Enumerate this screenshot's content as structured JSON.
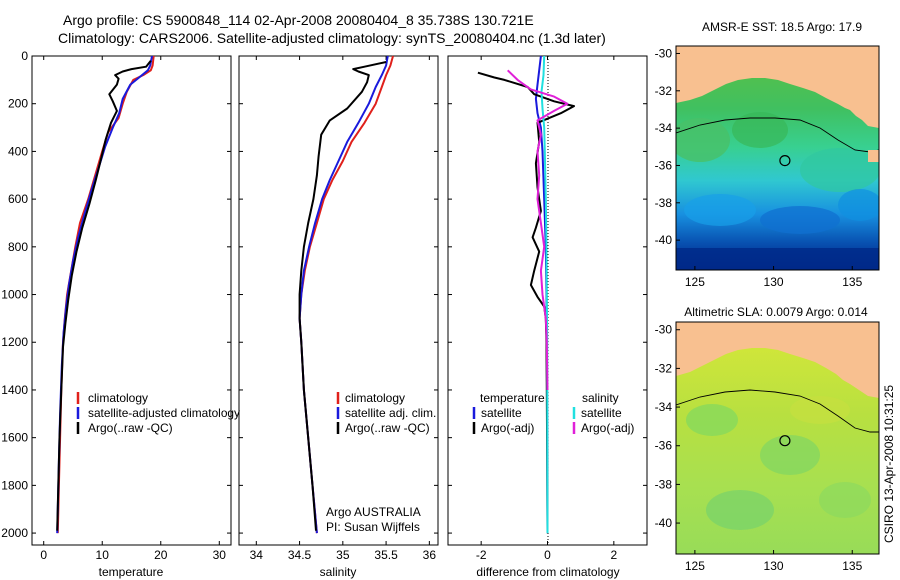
{
  "title": {
    "line1": "Argo profile: CS 5900848_114 02-Apr-2008 20080404_8 35.738S 130.721E",
    "line2": "Climatology: CARS2006. Satellite-adjusted climatology: synTS_20080404.nc (1.3d later)"
  },
  "colors": {
    "climatology": "#e0201b",
    "satellite": "#1a1adc",
    "argo": "#000000",
    "sat_salinity": "#20e0e0",
    "argo_salinity": "#e020d8",
    "land": "#f8c090"
  },
  "chart_data": [
    {
      "type": "line",
      "name": "temperature-profile",
      "xlabel": "temperature",
      "xlim": [
        -2,
        32
      ],
      "ylim": [
        0,
        2050
      ],
      "y_reversed": true,
      "xticks": [
        "0",
        "10",
        "20",
        "30"
      ],
      "xtick_values": [
        0,
        10,
        20,
        30
      ],
      "yticks": [
        "0",
        "200",
        "400",
        "600",
        "800",
        "1000",
        "1200",
        "1400",
        "1600",
        "1800",
        "2000"
      ],
      "ytick_values": [
        0,
        200,
        400,
        600,
        800,
        1000,
        1200,
        1400,
        1600,
        1800,
        2000
      ],
      "legend": [
        "climatology",
        "satellite-adjusted climatology",
        "Argo(..raw -QC)"
      ],
      "series": [
        {
          "name": "climatology",
          "color": "#e0201b",
          "points": [
            [
              18.8,
              0
            ],
            [
              18.6,
              40
            ],
            [
              18.3,
              60
            ],
            [
              17.0,
              80
            ],
            [
              15.3,
              100
            ],
            [
              14.2,
              150
            ],
            [
              13.5,
              200
            ],
            [
              12.8,
              260
            ],
            [
              11.0,
              320
            ],
            [
              10.0,
              400
            ],
            [
              8.8,
              500
            ],
            [
              7.6,
              600
            ],
            [
              6.2,
              700
            ],
            [
              5.4,
              800
            ],
            [
              4.7,
              900
            ],
            [
              4.0,
              1000
            ],
            [
              3.6,
              1100
            ],
            [
              3.3,
              1200
            ],
            [
              3.0,
              1400
            ],
            [
              2.8,
              1600
            ],
            [
              2.6,
              1800
            ],
            [
              2.4,
              2000
            ]
          ]
        },
        {
          "name": "satellite-adjusted climatology",
          "color": "#1a1adc",
          "points": [
            [
              18.5,
              0
            ],
            [
              18.2,
              40
            ],
            [
              17.8,
              60
            ],
            [
              16.3,
              90
            ],
            [
              14.8,
              120
            ],
            [
              13.5,
              180
            ],
            [
              12.9,
              240
            ],
            [
              11.8,
              300
            ],
            [
              10.5,
              380
            ],
            [
              9.5,
              460
            ],
            [
              8.2,
              560
            ],
            [
              7.0,
              660
            ],
            [
              5.9,
              760
            ],
            [
              5.0,
              860
            ],
            [
              4.3,
              960
            ],
            [
              3.8,
              1060
            ],
            [
              3.4,
              1160
            ],
            [
              3.1,
              1300
            ],
            [
              2.8,
              1500
            ],
            [
              2.6,
              1700
            ],
            [
              2.4,
              1900
            ],
            [
              2.3,
              2000
            ]
          ]
        },
        {
          "name": "Argo(..raw -QC)",
          "color": "#000000",
          "points": [
            [
              18.3,
              20
            ],
            [
              17.5,
              45
            ],
            [
              15.0,
              55
            ],
            [
              13.5,
              65
            ],
            [
              12.2,
              80
            ],
            [
              12.8,
              95
            ],
            [
              12.5,
              120
            ],
            [
              11.2,
              160
            ],
            [
              11.8,
              190
            ],
            [
              12.5,
              230
            ],
            [
              11.5,
              280
            ],
            [
              10.6,
              350
            ],
            [
              9.8,
              430
            ],
            [
              8.9,
              520
            ],
            [
              7.8,
              620
            ],
            [
              6.6,
              720
            ],
            [
              5.6,
              820
            ],
            [
              4.8,
              920
            ],
            [
              4.2,
              1020
            ],
            [
              3.7,
              1120
            ],
            [
              3.3,
              1220
            ],
            [
              3.0,
              1400
            ],
            [
              2.7,
              1600
            ],
            [
              2.5,
              1800
            ],
            [
              2.3,
              1990
            ]
          ]
        }
      ]
    },
    {
      "type": "line",
      "name": "salinity-profile",
      "xlabel": "salinity",
      "xlim": [
        33.8,
        36.1
      ],
      "ylim": [
        0,
        2050
      ],
      "y_reversed": true,
      "xticks": [
        "34",
        "34.5",
        "35",
        "35.5",
        "36"
      ],
      "xtick_values": [
        34,
        34.5,
        35,
        35.5,
        36
      ],
      "legend": [
        "climatology",
        "satellite adj. clim.",
        "Argo(..raw -QC)"
      ],
      "notes": [
        "Argo AUSTRALIA",
        "PI: Susan Wijffels"
      ],
      "series": [
        {
          "name": "climatology",
          "color": "#e0201b",
          "points": [
            [
              35.58,
              0
            ],
            [
              35.55,
              40
            ],
            [
              35.5,
              80
            ],
            [
              35.45,
              130
            ],
            [
              35.38,
              200
            ],
            [
              35.25,
              280
            ],
            [
              35.1,
              360
            ],
            [
              35.0,
              440
            ],
            [
              34.88,
              520
            ],
            [
              34.78,
              600
            ],
            [
              34.7,
              700
            ],
            [
              34.62,
              800
            ],
            [
              34.56,
              900
            ],
            [
              34.52,
              1000
            ],
            [
              34.5,
              1100
            ],
            [
              34.52,
              1200
            ],
            [
              34.55,
              1400
            ],
            [
              34.6,
              1600
            ],
            [
              34.65,
              1800
            ],
            [
              34.7,
              2000
            ]
          ]
        },
        {
          "name": "satellite adj. clim.",
          "color": "#1a1adc",
          "points": [
            [
              35.52,
              0
            ],
            [
              35.5,
              40
            ],
            [
              35.45,
              80
            ],
            [
              35.38,
              130
            ],
            [
              35.3,
              200
            ],
            [
              35.18,
              280
            ],
            [
              35.05,
              360
            ],
            [
              34.95,
              440
            ],
            [
              34.85,
              520
            ],
            [
              34.76,
              600
            ],
            [
              34.68,
              700
            ],
            [
              34.61,
              800
            ],
            [
              34.55,
              900
            ],
            [
              34.52,
              1000
            ],
            [
              34.5,
              1100
            ],
            [
              34.52,
              1200
            ],
            [
              34.55,
              1400
            ],
            [
              34.6,
              1600
            ],
            [
              34.65,
              1800
            ],
            [
              34.7,
              2000
            ]
          ]
        },
        {
          "name": "Argo(..raw -QC)",
          "color": "#000000",
          "points": [
            [
              35.5,
              25
            ],
            [
              35.25,
              45
            ],
            [
              35.12,
              55
            ],
            [
              35.18,
              65
            ],
            [
              35.3,
              80
            ],
            [
              35.28,
              110
            ],
            [
              35.22,
              150
            ],
            [
              35.05,
              220
            ],
            [
              34.85,
              270
            ],
            [
              34.75,
              330
            ],
            [
              34.72,
              420
            ],
            [
              34.7,
              500
            ],
            [
              34.66,
              600
            ],
            [
              34.6,
              700
            ],
            [
              34.55,
              800
            ],
            [
              34.52,
              900
            ],
            [
              34.5,
              1000
            ],
            [
              34.5,
              1100
            ],
            [
              34.52,
              1200
            ],
            [
              34.55,
              1400
            ],
            [
              34.6,
              1600
            ],
            [
              34.65,
              1800
            ],
            [
              34.69,
              1990
            ]
          ]
        }
      ]
    },
    {
      "type": "line",
      "name": "difference-profile",
      "xlabel": "difference from climatology",
      "xlim": [
        -3,
        3
      ],
      "ylim": [
        0,
        2050
      ],
      "y_reversed": true,
      "xticks": [
        "-2",
        "0",
        "2"
      ],
      "xtick_values": [
        -2,
        0,
        2
      ],
      "legend_left": {
        "title": "temperature",
        "items": [
          "satellite",
          "Argo(-adj)"
        ]
      },
      "legend_right": {
        "title": "salinity",
        "items": [
          "satellite",
          "Argo(-adj)"
        ]
      },
      "series": [
        {
          "name": "temperature satellite",
          "color": "#1a1adc",
          "points": [
            [
              -0.2,
              0
            ],
            [
              -0.25,
              60
            ],
            [
              -0.3,
              120
            ],
            [
              -0.35,
              180
            ],
            [
              -0.3,
              240
            ],
            [
              -0.2,
              300
            ],
            [
              -0.15,
              400
            ],
            [
              -0.1,
              600
            ],
            [
              -0.05,
              800
            ],
            [
              -0.03,
              1000
            ],
            [
              -0.02,
              1200
            ],
            [
              -0.01,
              1500
            ],
            [
              0,
              2000
            ]
          ]
        },
        {
          "name": "temperature Argo(-adj)",
          "color": "#000000",
          "points": [
            [
              -2.1,
              70
            ],
            [
              -1.6,
              90
            ],
            [
              -1.3,
              100
            ],
            [
              -0.6,
              130
            ],
            [
              -0.4,
              160
            ],
            [
              0.2,
              190
            ],
            [
              0.8,
              210
            ],
            [
              0.4,
              240
            ],
            [
              -0.3,
              280
            ],
            [
              -0.25,
              360
            ],
            [
              -0.35,
              450
            ],
            [
              -0.3,
              550
            ],
            [
              -0.2,
              650
            ],
            [
              -0.35,
              720
            ],
            [
              -0.45,
              760
            ],
            [
              -0.25,
              820
            ],
            [
              -0.4,
              900
            ],
            [
              -0.5,
              960
            ],
            [
              -0.3,
              1010
            ],
            [
              -0.1,
              1050
            ],
            [
              -0.05,
              1100
            ],
            [
              -0.03,
              1200
            ],
            [
              -0.02,
              1400
            ],
            [
              -0.01,
              1700
            ],
            [
              0,
              2000
            ]
          ]
        },
        {
          "name": "salinity satellite",
          "color": "#20e0e0",
          "points": [
            [
              -0.1,
              0
            ],
            [
              -0.12,
              80
            ],
            [
              -0.18,
              150
            ],
            [
              -0.15,
              220
            ],
            [
              -0.1,
              300
            ],
            [
              -0.08,
              400
            ],
            [
              -0.05,
              600
            ],
            [
              -0.03,
              800
            ],
            [
              -0.02,
              1000
            ],
            [
              -0.01,
              1200
            ],
            [
              0,
              2000
            ]
          ]
        },
        {
          "name": "salinity Argo(-adj)",
          "color": "#e020d8",
          "points": [
            [
              -1.2,
              60
            ],
            [
              -0.9,
              100
            ],
            [
              -0.5,
              140
            ],
            [
              0.2,
              170
            ],
            [
              0.6,
              200
            ],
            [
              0.2,
              230
            ],
            [
              -0.3,
              270
            ],
            [
              -0.2,
              330
            ],
            [
              -0.3,
              400
            ],
            [
              -0.25,
              500
            ],
            [
              -0.3,
              600
            ],
            [
              -0.2,
              700
            ],
            [
              -0.1,
              800
            ],
            [
              -0.2,
              900
            ],
            [
              -0.15,
              1000
            ],
            [
              -0.05,
              1100
            ],
            [
              -0.02,
              1200
            ],
            [
              0,
              1400
            ]
          ]
        }
      ]
    },
    {
      "type": "heatmap",
      "name": "sst-map",
      "title": "AMSR-E SST: 18.5 Argo: 17.9",
      "xticks": [
        "125",
        "130",
        "135"
      ],
      "xtick_values": [
        125,
        130,
        135
      ],
      "yticks": [
        "-30",
        "-32",
        "-34",
        "-36",
        "-38",
        "-40"
      ],
      "ytick_values": [
        -30,
        -32,
        -34,
        -36,
        -38,
        -40
      ],
      "xlim": [
        123.8,
        136.7
      ],
      "ylim": [
        -41.6,
        -29.6
      ],
      "argo_position": [
        130.721,
        -35.738
      ]
    },
    {
      "type": "heatmap",
      "name": "sla-map",
      "title": "Altimetric SLA: 0.0079 Argo: 0.014",
      "xticks": [
        "125",
        "130",
        "135"
      ],
      "xtick_values": [
        125,
        130,
        135
      ],
      "yticks": [
        "-30",
        "-32",
        "-34",
        "-36",
        "-38",
        "-40"
      ],
      "ytick_values": [
        -30,
        -32,
        -34,
        -36,
        -38,
        -40
      ],
      "xlim": [
        123.8,
        136.7
      ],
      "ylim": [
        -41.6,
        -29.6
      ],
      "argo_position": [
        130.721,
        -35.738
      ]
    }
  ],
  "footer_stamp": "CSIRO 13-Apr-2008 10:31:25"
}
